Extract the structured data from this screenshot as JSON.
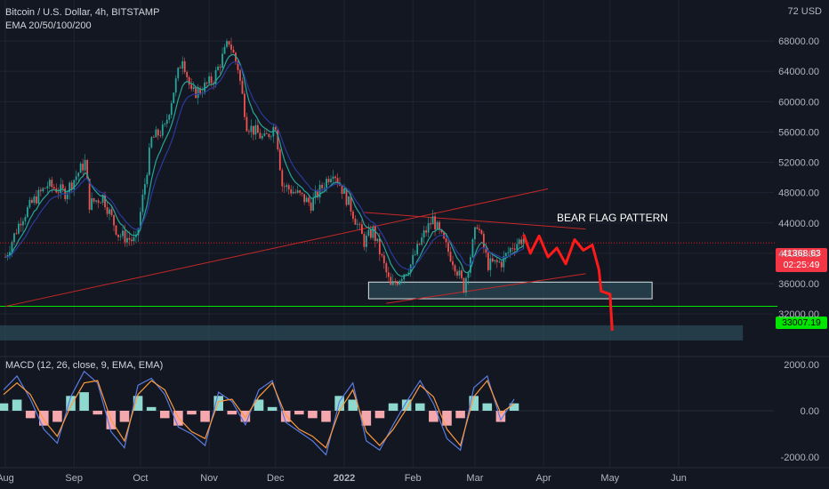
{
  "header": {
    "symbol": "Bitcoin / U.S. Dollar, 4h, BITSTAMP",
    "indicator": "EMA 20/50/100/200",
    "macd_label": "MACD (12, 26, close, 9, EMA, EMA)",
    "currency": "USD",
    "currency_top_tick": "72"
  },
  "annotation": {
    "pattern_label": "BEAR FLAG PATTERN"
  },
  "price_badge": {
    "price": "41368.63",
    "countdown": "02:25:49",
    "color": "#f23645"
  },
  "level_badge": {
    "price": "33007.19",
    "color": "#00e600"
  },
  "colors": {
    "background": "#131722",
    "up": "#26a69a",
    "down": "#ef5350",
    "forecast": "#ff1a1a",
    "zone": "#2a4a55",
    "level": "#00e600",
    "ema_fast": "#26a69a",
    "ema_slow": "#2a3a9c",
    "macd": "#5b7be0",
    "signal": "#ff9a3c"
  },
  "chart_data": [
    {
      "type": "line",
      "title": "Bitcoin / U.S. Dollar, 4h, BITSTAMP",
      "ylim": [
        26500,
        72000
      ],
      "y_ticks": [
        32000,
        36000,
        40000,
        44000,
        48000,
        52000,
        56000,
        60000,
        64000,
        68000
      ],
      "y_tick_labels": [
        "32000.00",
        "36000.00",
        "40000.00",
        "44000.00",
        "48000.00",
        "52000.00",
        "56000.00",
        "60000.00",
        "64000.00",
        "68000.00"
      ],
      "x_tick_labels": [
        "Aug",
        "Sep",
        "Oct",
        "Nov",
        "Dec",
        "2022",
        "Feb",
        "Mar",
        "Apr",
        "May",
        "Jun"
      ],
      "x_tick_dates": [
        "2021-08-01",
        "2021-09-01",
        "2021-10-01",
        "2021-11-01",
        "2021-12-01",
        "2022-01-01",
        "2022-02-01",
        "2022-03-01",
        "2022-04-01",
        "2022-05-01",
        "2022-06-01"
      ],
      "series": [
        {
          "kind": "price",
          "points": [
            [
              "2021-08-01",
              39500
            ],
            [
              "2021-08-08",
              44500
            ],
            [
              "2021-08-14",
              47000
            ],
            [
              "2021-08-20",
              49000
            ],
            [
              "2021-08-28",
              48000
            ],
            [
              "2021-09-06",
              52000
            ],
            [
              "2021-09-08",
              46500
            ],
            [
              "2021-09-14",
              47500
            ],
            [
              "2021-09-21",
              42500
            ],
            [
              "2021-09-29",
              41500
            ],
            [
              "2021-10-06",
              55000
            ],
            [
              "2021-10-12",
              56500
            ],
            [
              "2021-10-16",
              61500
            ],
            [
              "2021-10-20",
              66000
            ],
            [
              "2021-10-24",
              61000
            ],
            [
              "2021-10-28",
              61500
            ],
            [
              "2021-11-03",
              63000
            ],
            [
              "2021-11-10",
              68000
            ],
            [
              "2021-11-14",
              64500
            ],
            [
              "2021-11-18",
              57000
            ],
            [
              "2021-11-26",
              55000
            ],
            [
              "2021-12-01",
              57000
            ],
            [
              "2021-12-04",
              49000
            ],
            [
              "2021-12-10",
              48000
            ],
            [
              "2021-12-17",
              46500
            ],
            [
              "2021-12-27",
              51000
            ],
            [
              "2022-01-04",
              46000
            ],
            [
              "2022-01-10",
              41500
            ],
            [
              "2022-01-14",
              43000
            ],
            [
              "2022-01-22",
              35500
            ],
            [
              "2022-01-25",
              36500
            ],
            [
              "2022-01-31",
              38500
            ],
            [
              "2022-02-06",
              42500
            ],
            [
              "2022-02-10",
              44500
            ],
            [
              "2022-02-14",
              42000
            ],
            [
              "2022-02-20",
              38500
            ],
            [
              "2022-02-24",
              35500
            ],
            [
              "2022-03-02",
              44000
            ],
            [
              "2022-03-07",
              38500
            ],
            [
              "2022-03-13",
              38800
            ],
            [
              "2022-03-18",
              41000
            ],
            [
              "2022-03-23",
              42000
            ]
          ]
        },
        {
          "kind": "forecast",
          "points": [
            [
              "2022-03-23",
              42500
            ],
            [
              "2022-03-26",
              40000
            ],
            [
              "2022-03-30",
              42300
            ],
            [
              "2022-04-03",
              39500
            ],
            [
              "2022-04-07",
              40700
            ],
            [
              "2022-04-11",
              38600
            ],
            [
              "2022-04-15",
              41800
            ],
            [
              "2022-04-19",
              40400
            ],
            [
              "2022-04-23",
              41100
            ],
            [
              "2022-04-26",
              37800
            ],
            [
              "2022-04-27",
              35000
            ],
            [
              "2022-05-01",
              34600
            ],
            [
              "2022-05-02",
              29800
            ]
          ]
        }
      ],
      "zones": [
        {
          "from": "2022-01-12",
          "to": "2022-05-20",
          "y0": 34000,
          "y1": 36200
        },
        {
          "from": "2021-07-25",
          "to": "2022-06-30",
          "y0": 28500,
          "y1": 30500
        }
      ],
      "horizontal_level": 33007.19
    },
    {
      "type": "line",
      "title": "MACD (12, 26, close, 9, EMA, EMA)",
      "ylim": [
        -2300,
        2300
      ],
      "y_ticks": [
        2000,
        0,
        -2000
      ],
      "y_tick_labels": [
        "2000.00",
        "0.00",
        "-2000.00"
      ],
      "series": [
        {
          "name": "MACD",
          "values": [
            900,
            1500,
            500,
            -800,
            -1400,
            600,
            1700,
            1200,
            -900,
            -1600,
            1100,
            1400,
            700,
            -700,
            -1000,
            -1500,
            800,
            400,
            -600,
            900,
            1300,
            -500,
            -900,
            -1300,
            -1900,
            400,
            1200,
            -1300,
            -1700,
            -600,
            400,
            1300,
            300,
            -1200,
            -1700,
            1000,
            1500,
            -400,
            500
          ]
        },
        {
          "name": "Signal",
          "values": [
            700,
            1200,
            700,
            -400,
            -1100,
            200,
            1200,
            1300,
            -400,
            -1300,
            700,
            1300,
            900,
            -300,
            -900,
            -1200,
            400,
            500,
            -300,
            600,
            1200,
            -200,
            -800,
            -1100,
            -1600,
            0,
            900,
            -900,
            -1500,
            -800,
            100,
            1100,
            600,
            -800,
            -1500,
            600,
            1300,
            -100,
            300
          ]
        }
      ]
    }
  ]
}
